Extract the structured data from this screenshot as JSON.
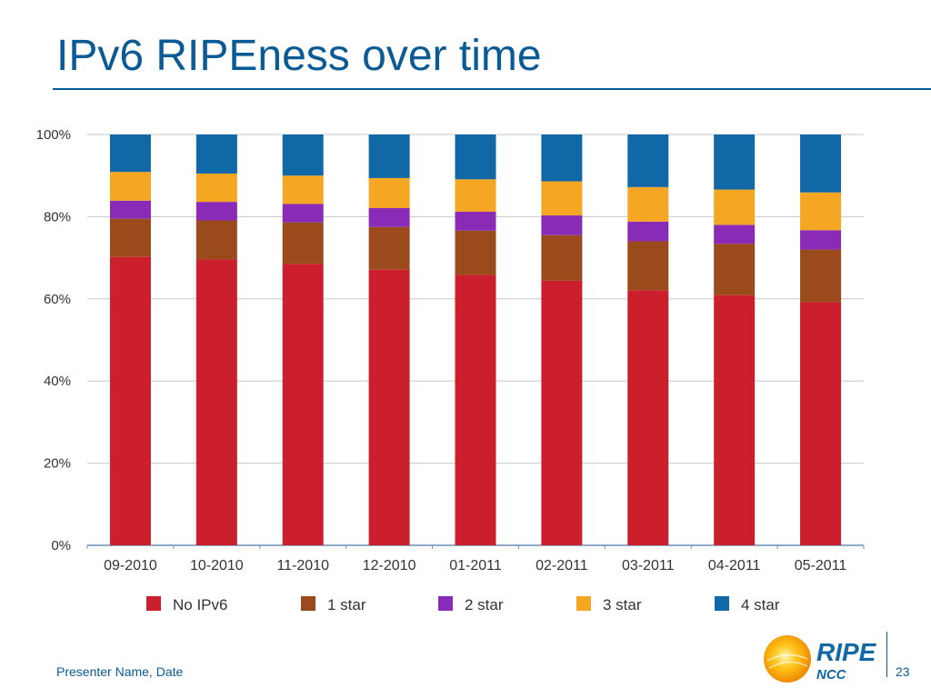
{
  "slide": {
    "title": "IPv6 RIPEness over time",
    "footer": "Presenter Name, Date",
    "page_number": "23"
  },
  "logo": {
    "text_main": "RIPE",
    "text_sub": "NCC"
  },
  "colors": {
    "title": "#0a5a96",
    "No IPv6": "#cc1f2d",
    "1 star": "#9b4a1c",
    "2 star": "#8a2bb8",
    "3 star": "#f5a623",
    "4 star": "#1168a6"
  },
  "chart_data": {
    "type": "bar",
    "stacked": true,
    "title": "",
    "xlabel": "",
    "ylabel": "",
    "ylim": [
      0,
      100
    ],
    "y_ticks": [
      "0%",
      "20%",
      "40%",
      "60%",
      "80%",
      "100%"
    ],
    "y_tick_values": [
      0,
      20,
      40,
      60,
      80,
      100
    ],
    "grid": true,
    "legend_position": "bottom",
    "categories": [
      "09-2010",
      "10-2010",
      "11-2010",
      "12-2010",
      "01-2011",
      "02-2011",
      "03-2011",
      "04-2011",
      "05-2011"
    ],
    "series": [
      {
        "name": "No IPv6",
        "values": [
          70.2,
          69.6,
          68.5,
          67.1,
          65.8,
          64.4,
          62.1,
          60.9,
          59.2
        ]
      },
      {
        "name": "1 star",
        "values": [
          9.3,
          9.5,
          10.1,
          10.4,
          10.8,
          11.1,
          11.9,
          12.5,
          12.8
        ]
      },
      {
        "name": "2 star",
        "values": [
          4.4,
          4.5,
          4.5,
          4.6,
          4.6,
          4.8,
          4.8,
          4.6,
          4.7
        ]
      },
      {
        "name": "3 star",
        "values": [
          7.0,
          6.9,
          6.9,
          7.3,
          7.9,
          8.3,
          8.4,
          8.6,
          9.2
        ]
      },
      {
        "name": "4 star",
        "values": [
          9.1,
          9.5,
          10.0,
          10.6,
          10.9,
          11.4,
          12.8,
          13.4,
          14.1
        ]
      }
    ]
  }
}
